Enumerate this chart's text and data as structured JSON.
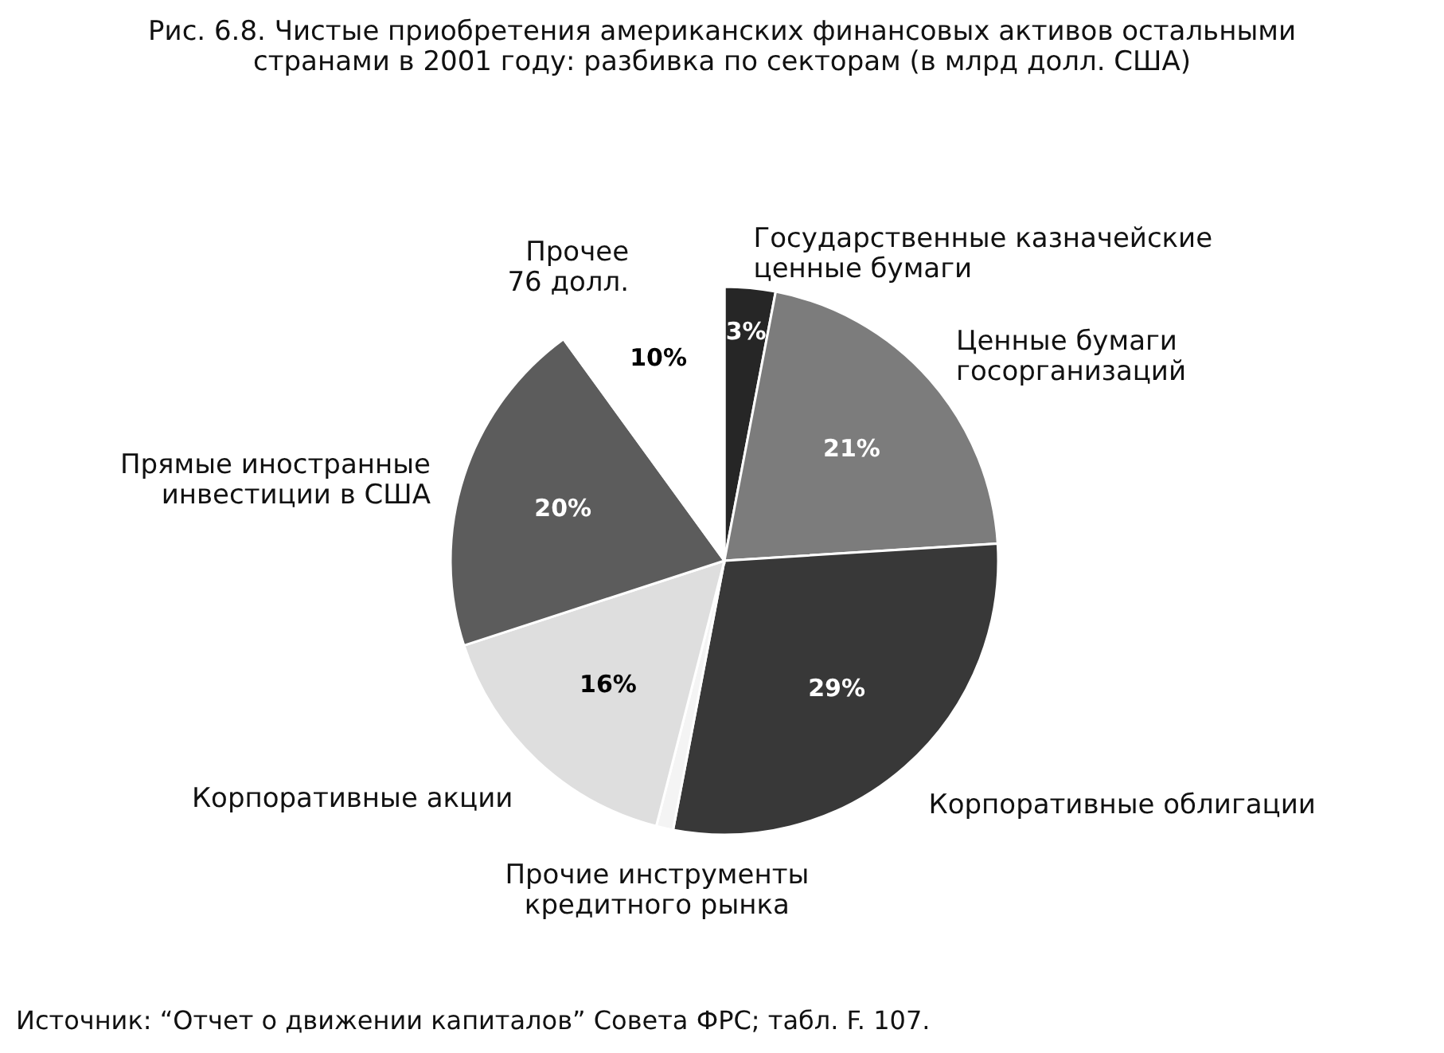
{
  "chart_data": {
    "type": "pie",
    "title": "Рис. 6.8. Чистые приобретения американских финансовых активов остальными\nстранами в 2001 году: разбивка по секторам (в млрд долл. США)",
    "categories": [
      "Государственные казначейские\nценные бумаги",
      "Ценные бумаги\nгосорганизаций",
      "Корпоративные облигации",
      "Прочие инструменты\nкредитного рынка",
      "Корпоративные акции",
      "Прямые иностранные\nинвестиции в США",
      "Прочее\n76 долл."
    ],
    "values": [
      3,
      21,
      29,
      1,
      16,
      20,
      10
    ],
    "colors": [
      "#262626",
      "#7c7c7c",
      "#383838",
      "#f4f4f4",
      "#dedede",
      "#5c5c5c",
      "#ffffff"
    ],
    "value_labels": [
      "3%",
      "21%",
      "29%",
      null,
      "16%",
      "20%",
      "10%"
    ],
    "annotations": [
      "Источник: “Отчет о движении капиталов” Совета ФРС; табл. F. 107."
    ]
  }
}
